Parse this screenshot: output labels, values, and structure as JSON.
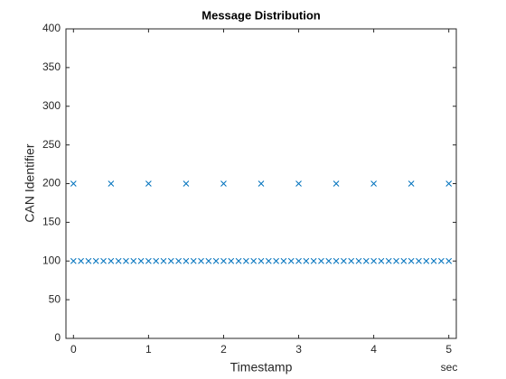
{
  "chart_data": {
    "type": "scatter",
    "title": "Message Distribution",
    "x_label": "Timestamp",
    "y_label": "CAN Identifier",
    "x_unit": "sec",
    "xlim": [
      -0.1,
      5.1
    ],
    "xticks": [
      0,
      1,
      2,
      3,
      4,
      5
    ],
    "ylim": [
      0,
      400
    ],
    "yticks": [
      0,
      50,
      100,
      150,
      200,
      250,
      300,
      350,
      400
    ],
    "marker": "x",
    "series": [
      {
        "color": "#0072bd",
        "x": [
          0,
          0.1,
          0.2,
          0.3,
          0.4,
          0.5,
          0.6,
          0.7,
          0.8,
          0.9,
          1,
          1.1,
          1.2,
          1.3,
          1.4,
          1.5,
          1.6,
          1.7,
          1.8,
          1.9,
          2,
          2.1,
          2.2,
          2.3,
          2.4,
          2.5,
          2.6,
          2.7,
          2.8,
          2.9,
          3,
          3.1,
          3.2,
          3.3,
          3.4,
          3.5,
          3.6,
          3.7,
          3.8,
          3.9,
          4,
          4.1,
          4.2,
          4.3,
          4.4,
          4.5,
          4.6,
          4.7,
          4.8,
          4.9,
          5
        ],
        "values": [
          100,
          100,
          100,
          100,
          100,
          100,
          100,
          100,
          100,
          100,
          100,
          100,
          100,
          100,
          100,
          100,
          100,
          100,
          100,
          100,
          100,
          100,
          100,
          100,
          100,
          100,
          100,
          100,
          100,
          100,
          100,
          100,
          100,
          100,
          100,
          100,
          100,
          100,
          100,
          100,
          100,
          100,
          100,
          100,
          100,
          100,
          100,
          100,
          100,
          100,
          100
        ]
      },
      {
        "color": "#0072bd",
        "x": [
          0,
          0.5,
          1,
          1.5,
          2,
          2.5,
          3,
          3.5,
          4,
          4.5,
          5
        ],
        "values": [
          200,
          200,
          200,
          200,
          200,
          200,
          200,
          200,
          200,
          200,
          200
        ]
      }
    ]
  }
}
